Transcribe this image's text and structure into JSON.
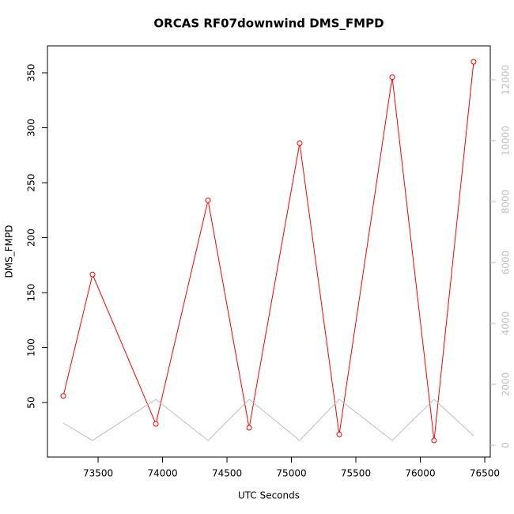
{
  "chart_data": {
    "type": "line",
    "title": "ORCAS RF07downwind DMS_FMPD",
    "x_label": "UTC Seconds",
    "y_label": "DMS_FMPD",
    "x": [
      73230,
      73457,
      73948,
      74353,
      74672,
      75064,
      75371,
      75782,
      76107,
      76414
    ],
    "series": [
      {
        "color": "#ff0000",
        "values": [
          56,
          166.5,
          30.6,
          234,
          27,
          286,
          21,
          346,
          15.5,
          360
        ],
        "markers": true
      },
      {
        "color": "#bebebe",
        "axis": "y2",
        "values": [
          727,
          156,
          1506,
          156,
          1506,
          156,
          1506,
          156,
          1506,
          312
        ],
        "markers": false
      }
    ],
    "xlim": [
      73107,
      76543
    ],
    "xticks": [
      73500,
      74000,
      74500,
      75000,
      75500,
      76000,
      76500
    ],
    "ylim": [
      0.4,
      374.5
    ],
    "yticks": [
      50,
      100,
      150,
      200,
      250,
      300,
      350
    ],
    "y2lim": [
      -390,
      13117
    ],
    "y2ticks": [
      0,
      2000,
      4000,
      6000,
      8000,
      10000,
      12000
    ],
    "y2color": "#bebebe"
  }
}
